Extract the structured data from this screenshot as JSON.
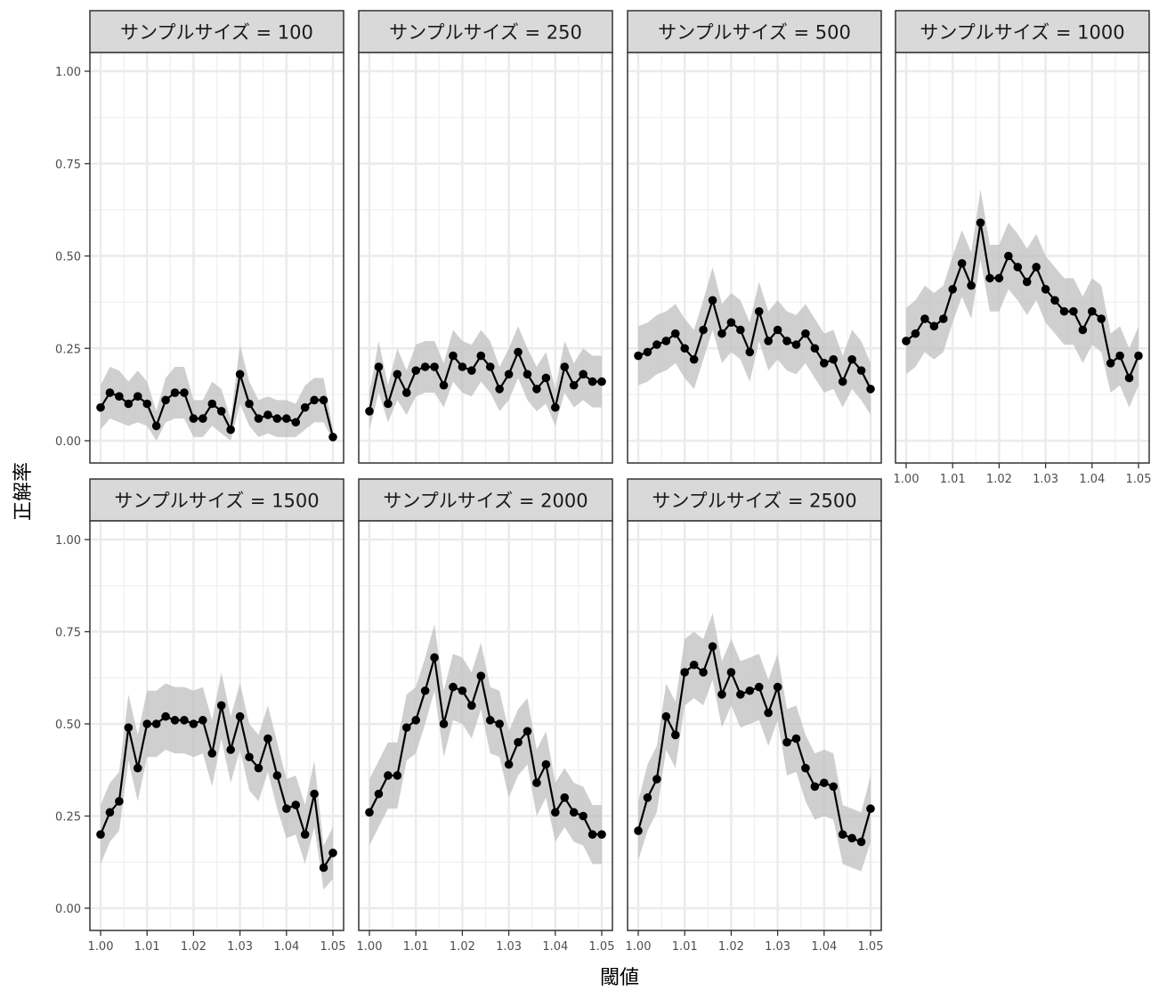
{
  "chart_data": {
    "type": "line",
    "xlabel": "閾値",
    "ylabel": "正解率",
    "xlim": [
      1.0,
      1.05
    ],
    "ylim": [
      0.0,
      1.0
    ],
    "x_ticks": [
      "1.00",
      "1.01",
      "1.02",
      "1.03",
      "1.04",
      "1.05"
    ],
    "y_ticks": [
      "0.00",
      "0.25",
      "0.50",
      "0.75",
      "1.00"
    ],
    "grid": true,
    "x": [
      1.0,
      1.002,
      1.004,
      1.006,
      1.008,
      1.01,
      1.012,
      1.014,
      1.016,
      1.018,
      1.02,
      1.022,
      1.024,
      1.026,
      1.028,
      1.03,
      1.032,
      1.034,
      1.036,
      1.038,
      1.04,
      1.042,
      1.044,
      1.046,
      1.048,
      1.05
    ],
    "panels": [
      {
        "label": "サンプルサイズ = 100",
        "values": [
          0.09,
          0.13,
          0.12,
          0.1,
          0.12,
          0.1,
          0.04,
          0.11,
          0.13,
          0.13,
          0.06,
          0.06,
          0.1,
          0.08,
          0.03,
          0.18,
          0.1,
          0.06,
          0.07,
          0.06,
          0.06,
          0.05,
          0.09,
          0.11,
          0.11,
          0.01
        ],
        "lower": [
          0.03,
          0.06,
          0.05,
          0.04,
          0.05,
          0.04,
          0.0,
          0.05,
          0.06,
          0.06,
          0.01,
          0.01,
          0.04,
          0.02,
          0.0,
          0.1,
          0.04,
          0.01,
          0.02,
          0.01,
          0.01,
          0.01,
          0.03,
          0.05,
          0.05,
          0.0
        ],
        "upper": [
          0.15,
          0.2,
          0.19,
          0.16,
          0.19,
          0.16,
          0.08,
          0.17,
          0.2,
          0.2,
          0.11,
          0.11,
          0.16,
          0.14,
          0.06,
          0.26,
          0.16,
          0.11,
          0.12,
          0.11,
          0.11,
          0.1,
          0.15,
          0.17,
          0.17,
          0.03
        ]
      },
      {
        "label": "サンプルサイズ = 250",
        "values": [
          0.08,
          0.2,
          0.1,
          0.18,
          0.13,
          0.19,
          0.2,
          0.2,
          0.15,
          0.23,
          0.2,
          0.19,
          0.23,
          0.2,
          0.14,
          0.18,
          0.24,
          0.18,
          0.14,
          0.17,
          0.09,
          0.2,
          0.15,
          0.18,
          0.16,
          0.16
        ],
        "lower": [
          0.03,
          0.13,
          0.05,
          0.11,
          0.07,
          0.12,
          0.13,
          0.13,
          0.09,
          0.16,
          0.13,
          0.12,
          0.16,
          0.13,
          0.08,
          0.11,
          0.17,
          0.11,
          0.08,
          0.1,
          0.04,
          0.13,
          0.09,
          0.11,
          0.09,
          0.09
        ],
        "upper": [
          0.13,
          0.27,
          0.15,
          0.25,
          0.19,
          0.26,
          0.27,
          0.27,
          0.21,
          0.3,
          0.27,
          0.26,
          0.3,
          0.27,
          0.2,
          0.25,
          0.31,
          0.25,
          0.2,
          0.24,
          0.14,
          0.27,
          0.21,
          0.25,
          0.23,
          0.23
        ]
      },
      {
        "label": "サンプルサイズ = 500",
        "values": [
          0.23,
          0.24,
          0.26,
          0.27,
          0.29,
          0.25,
          0.22,
          0.3,
          0.38,
          0.29,
          0.32,
          0.3,
          0.24,
          0.35,
          0.27,
          0.3,
          0.27,
          0.26,
          0.29,
          0.25,
          0.21,
          0.22,
          0.16,
          0.22,
          0.19,
          0.14
        ],
        "lower": [
          0.15,
          0.16,
          0.18,
          0.19,
          0.21,
          0.17,
          0.14,
          0.22,
          0.3,
          0.21,
          0.24,
          0.22,
          0.16,
          0.27,
          0.19,
          0.22,
          0.19,
          0.18,
          0.21,
          0.17,
          0.13,
          0.14,
          0.09,
          0.14,
          0.11,
          0.07
        ],
        "upper": [
          0.31,
          0.32,
          0.34,
          0.35,
          0.37,
          0.33,
          0.3,
          0.38,
          0.47,
          0.37,
          0.4,
          0.38,
          0.32,
          0.43,
          0.35,
          0.38,
          0.35,
          0.34,
          0.37,
          0.33,
          0.29,
          0.3,
          0.23,
          0.3,
          0.27,
          0.21
        ]
      },
      {
        "label": "サンプルサイズ = 1000",
        "values": [
          0.27,
          0.29,
          0.33,
          0.31,
          0.33,
          0.41,
          0.48,
          0.42,
          0.59,
          0.44,
          0.44,
          0.5,
          0.47,
          0.43,
          0.47,
          0.41,
          0.38,
          0.35,
          0.35,
          0.3,
          0.35,
          0.33,
          0.21,
          0.23,
          0.17,
          0.23
        ],
        "lower": [
          0.18,
          0.2,
          0.24,
          0.22,
          0.24,
          0.32,
          0.39,
          0.33,
          0.49,
          0.35,
          0.35,
          0.41,
          0.38,
          0.34,
          0.38,
          0.32,
          0.29,
          0.26,
          0.26,
          0.21,
          0.26,
          0.24,
          0.13,
          0.15,
          0.09,
          0.15
        ],
        "upper": [
          0.36,
          0.38,
          0.42,
          0.4,
          0.42,
          0.5,
          0.57,
          0.51,
          0.68,
          0.53,
          0.53,
          0.59,
          0.56,
          0.52,
          0.56,
          0.5,
          0.47,
          0.44,
          0.44,
          0.39,
          0.44,
          0.42,
          0.29,
          0.31,
          0.25,
          0.31
        ]
      },
      {
        "label": "サンプルサイズ = 1500",
        "values": [
          0.2,
          0.26,
          0.29,
          0.49,
          0.38,
          0.5,
          0.5,
          0.52,
          0.51,
          0.51,
          0.5,
          0.51,
          0.42,
          0.55,
          0.43,
          0.52,
          0.41,
          0.38,
          0.46,
          0.36,
          0.27,
          0.28,
          0.2,
          0.31,
          0.11,
          0.15
        ],
        "lower": [
          0.12,
          0.18,
          0.21,
          0.4,
          0.29,
          0.41,
          0.41,
          0.43,
          0.42,
          0.42,
          0.41,
          0.42,
          0.33,
          0.46,
          0.34,
          0.43,
          0.32,
          0.29,
          0.37,
          0.27,
          0.19,
          0.2,
          0.12,
          0.22,
          0.05,
          0.08
        ],
        "upper": [
          0.28,
          0.34,
          0.37,
          0.58,
          0.47,
          0.59,
          0.59,
          0.61,
          0.6,
          0.6,
          0.59,
          0.6,
          0.51,
          0.64,
          0.52,
          0.61,
          0.5,
          0.47,
          0.55,
          0.45,
          0.35,
          0.36,
          0.28,
          0.4,
          0.17,
          0.22
        ]
      },
      {
        "label": "サンプルサイズ = 2000",
        "values": [
          0.26,
          0.31,
          0.36,
          0.36,
          0.49,
          0.51,
          0.59,
          0.68,
          0.5,
          0.6,
          0.59,
          0.55,
          0.63,
          0.51,
          0.5,
          0.39,
          0.45,
          0.48,
          0.34,
          0.39,
          0.26,
          0.3,
          0.26,
          0.25,
          0.2,
          0.2
        ],
        "lower": [
          0.17,
          0.22,
          0.27,
          0.27,
          0.4,
          0.42,
          0.5,
          0.59,
          0.41,
          0.51,
          0.5,
          0.46,
          0.54,
          0.42,
          0.41,
          0.3,
          0.36,
          0.39,
          0.25,
          0.3,
          0.18,
          0.22,
          0.18,
          0.17,
          0.12,
          0.12
        ],
        "upper": [
          0.35,
          0.4,
          0.45,
          0.45,
          0.58,
          0.6,
          0.68,
          0.77,
          0.59,
          0.69,
          0.68,
          0.64,
          0.72,
          0.6,
          0.59,
          0.48,
          0.54,
          0.57,
          0.43,
          0.48,
          0.34,
          0.38,
          0.34,
          0.33,
          0.28,
          0.28
        ]
      },
      {
        "label": "サンプルサイズ = 2500",
        "values": [
          0.21,
          0.3,
          0.35,
          0.52,
          0.47,
          0.64,
          0.66,
          0.64,
          0.71,
          0.58,
          0.64,
          0.58,
          0.59,
          0.6,
          0.53,
          0.6,
          0.45,
          0.46,
          0.38,
          0.33,
          0.34,
          0.33,
          0.2,
          0.19,
          0.18,
          0.27
        ],
        "lower": [
          0.13,
          0.21,
          0.26,
          0.43,
          0.38,
          0.55,
          0.57,
          0.55,
          0.62,
          0.49,
          0.55,
          0.49,
          0.5,
          0.51,
          0.44,
          0.51,
          0.36,
          0.37,
          0.29,
          0.24,
          0.25,
          0.24,
          0.12,
          0.11,
          0.1,
          0.18
        ],
        "upper": [
          0.29,
          0.39,
          0.44,
          0.61,
          0.56,
          0.73,
          0.75,
          0.73,
          0.8,
          0.67,
          0.73,
          0.67,
          0.68,
          0.69,
          0.62,
          0.69,
          0.54,
          0.55,
          0.47,
          0.42,
          0.43,
          0.42,
          0.28,
          0.27,
          0.26,
          0.36
        ]
      }
    ]
  }
}
